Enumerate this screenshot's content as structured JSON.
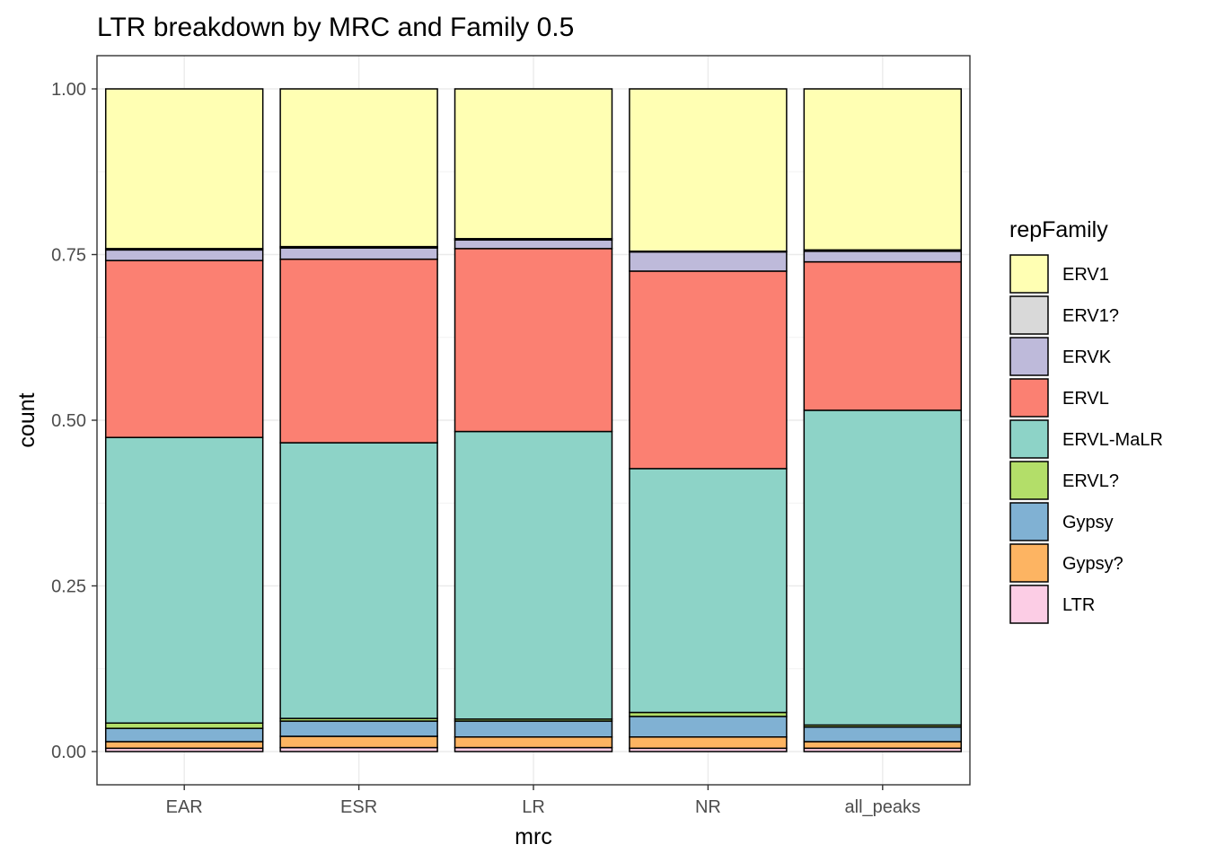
{
  "chart_data": {
    "type": "bar",
    "stacked": "fill",
    "title": "LTR breakdown by MRC and Family 0.5",
    "xlabel": "mrc",
    "ylabel": "count",
    "ylim": [
      0,
      1
    ],
    "yticks": [
      "0.00",
      "0.25",
      "0.50",
      "0.75",
      "1.00"
    ],
    "ytick_values": [
      0,
      0.25,
      0.5,
      0.75,
      1.0
    ],
    "categories": [
      "EAR",
      "ESR",
      "LR",
      "NR",
      "all_peaks"
    ],
    "legend_title": "repFamily",
    "legend_position": "right",
    "grid": true,
    "series": [
      {
        "name": "ERV1",
        "color": "#FFFFB3",
        "values": [
          0.241,
          0.238,
          0.226,
          0.245,
          0.243
        ]
      },
      {
        "name": "ERV1?",
        "color": "#D9D9D9",
        "values": [
          0.002,
          0.002,
          0.002,
          0.001,
          0.002
        ]
      },
      {
        "name": "ERVK",
        "color": "#BEBADA",
        "values": [
          0.016,
          0.017,
          0.013,
          0.029,
          0.016
        ]
      },
      {
        "name": "ERVL",
        "color": "#FB8072",
        "values": [
          0.267,
          0.277,
          0.276,
          0.298,
          0.224
        ]
      },
      {
        "name": "ERVL-MaLR",
        "color": "#8DD3C7",
        "values": [
          0.431,
          0.416,
          0.434,
          0.368,
          0.475
        ]
      },
      {
        "name": "ERVL?",
        "color": "#B3DE69",
        "values": [
          0.008,
          0.004,
          0.003,
          0.006,
          0.003
        ]
      },
      {
        "name": "Gypsy",
        "color": "#80B1D3",
        "values": [
          0.02,
          0.023,
          0.024,
          0.031,
          0.022
        ]
      },
      {
        "name": "Gypsy?",
        "color": "#FDB462",
        "values": [
          0.01,
          0.017,
          0.016,
          0.017,
          0.01
        ]
      },
      {
        "name": "LTR",
        "color": "#FCCDE5",
        "values": [
          0.005,
          0.006,
          0.006,
          0.005,
          0.005
        ]
      }
    ]
  }
}
